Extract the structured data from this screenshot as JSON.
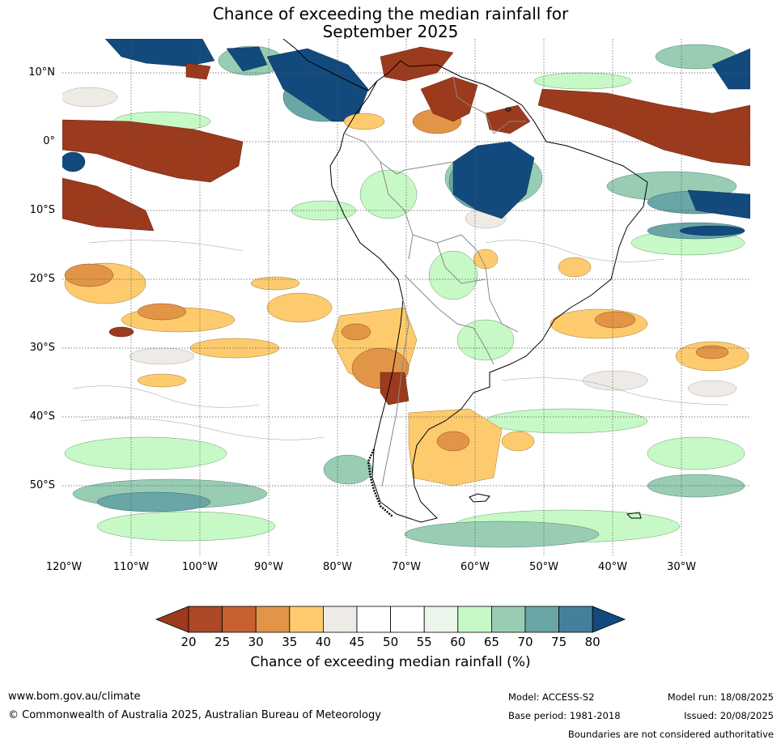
{
  "title_line1": "Chance of exceeding the median rainfall for",
  "title_line2": "September 2025",
  "lat_labels": [
    "10°N",
    "0°",
    "10°S",
    "20°S",
    "30°S",
    "40°S",
    "50°S"
  ],
  "lon_labels": [
    "120°W",
    "110°W",
    "100°W",
    "90°W",
    "80°W",
    "70°W",
    "60°W",
    "50°W",
    "40°W",
    "30°W"
  ],
  "colorbar": {
    "label": "Chance of exceeding median rainfall (%)",
    "ticks": [
      "20",
      "25",
      "30",
      "35",
      "40",
      "45",
      "50",
      "55",
      "60",
      "65",
      "70",
      "75",
      "80"
    ],
    "colors": [
      "#9c3a1d",
      "#ad4826",
      "#c8612f",
      "#e29547",
      "#fdcb6e",
      "#eeeae6",
      "#ffffff",
      "#ffffff",
      "#ebf5eb",
      "#c6f9c6",
      "#98cdb4",
      "#6aa6a6",
      "#467f9c",
      "#124a7e"
    ]
  },
  "footer": {
    "url": "www.bom.gov.au/climate",
    "copyright": "© Commonwealth of Australia 2025, Australian Bureau of Meteorology",
    "model": "Model: ACCESS-S2",
    "base_period": "Base period: 1981-2018",
    "model_run": "Model run: 18/08/2025",
    "issued": "Issued: 20/08/2025",
    "boundaries": "Boundaries are not considered authoritative"
  }
}
